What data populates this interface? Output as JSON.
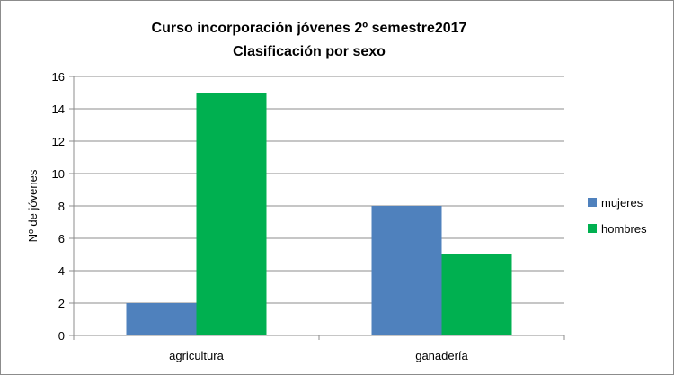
{
  "chart_data": {
    "type": "bar",
    "title": [
      "Curso incorporación jóvenes 2º semestre2017",
      "Clasificación por sexo"
    ],
    "ylabel": "Nº de jóvenes",
    "xlabel": "",
    "categories": [
      "agricultura",
      "ganadería"
    ],
    "series": [
      {
        "name": "mujeres",
        "values": [
          2,
          8
        ],
        "color": "#4f81bd"
      },
      {
        "name": "hombres",
        "values": [
          15,
          5
        ],
        "color": "#00b050"
      }
    ],
    "ylim": [
      0,
      16
    ],
    "yticks": [
      0,
      2,
      4,
      6,
      8,
      10,
      12,
      14,
      16
    ],
    "grid": true,
    "legend": "right"
  }
}
